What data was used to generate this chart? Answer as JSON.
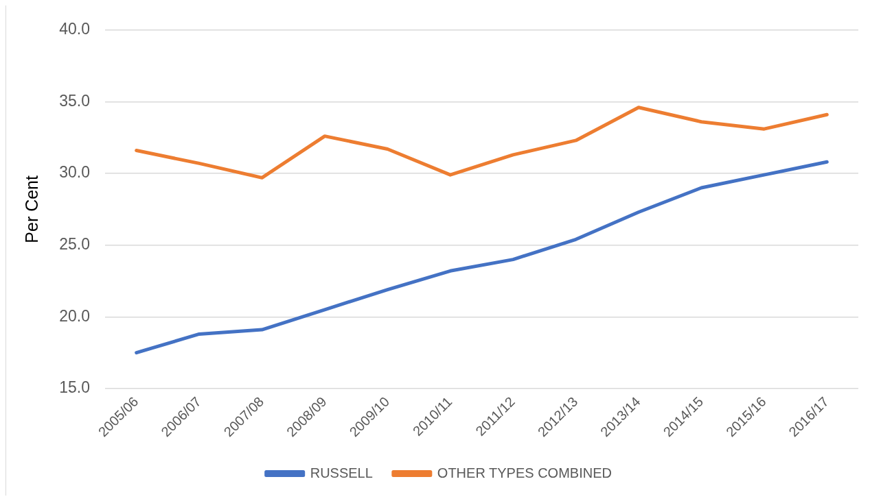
{
  "chart_data": {
    "type": "line",
    "ylabel": "Per Cent",
    "categories": [
      "2005/06",
      "2006/07",
      "2007/08",
      "2008/09",
      "2009/10",
      "2010/11",
      "2011/12",
      "2012/13",
      "2013/14",
      "2014/15",
      "2015/16",
      "2016/17"
    ],
    "series": [
      {
        "name": "RUSSELL",
        "color": "#4472c4",
        "values": [
          17.5,
          18.8,
          19.1,
          20.5,
          21.9,
          23.2,
          24.0,
          25.4,
          27.3,
          29.0,
          29.9,
          30.8
        ]
      },
      {
        "name": "OTHER TYPES COMBINED",
        "color": "#ed7d31",
        "values": [
          31.6,
          30.7,
          29.7,
          32.6,
          31.7,
          29.9,
          31.3,
          32.3,
          34.6,
          33.6,
          33.1,
          34.1
        ]
      }
    ],
    "ylim": [
      15,
      40
    ],
    "yticks": [
      {
        "value": 15,
        "label": "15.0"
      },
      {
        "value": 20,
        "label": "20.0"
      },
      {
        "value": 25,
        "label": "25.0"
      },
      {
        "value": 30,
        "label": "30.0"
      },
      {
        "value": 35,
        "label": "35.0"
      },
      {
        "value": 40,
        "label": "40.0"
      }
    ],
    "grid": "y",
    "legend": "bottom",
    "marker": "none",
    "line_style": "solid"
  }
}
